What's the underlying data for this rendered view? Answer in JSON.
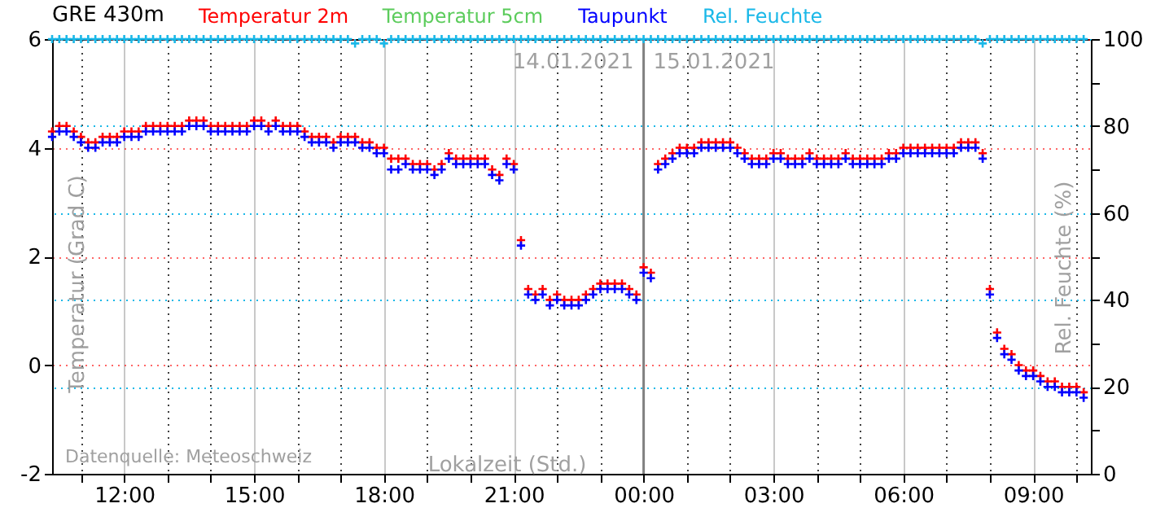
{
  "chart_data": {
    "type": "scatter",
    "title": "GRE 430m",
    "xlabel": "Lokalzeit (Std.)",
    "ylabel": "Temperatur (Grad C)",
    "y2label": "Rel. Feuchte (%)",
    "annotations": [
      "14.01.2021",
      "15.01.2021",
      "Datenquelle: Meteoschweiz"
    ],
    "x": [
      "2021-01-14T10:20",
      "2021-01-14T10:30",
      "2021-01-14T10:40",
      "2021-01-14T10:50",
      "2021-01-14T11:00",
      "2021-01-14T11:10",
      "2021-01-14T11:20",
      "2021-01-14T11:30",
      "2021-01-14T11:40",
      "2021-01-14T11:50",
      "2021-01-14T12:00",
      "2021-01-14T12:10",
      "2021-01-14T12:20",
      "2021-01-14T12:30",
      "2021-01-14T12:40",
      "2021-01-14T12:50",
      "2021-01-14T13:00",
      "2021-01-14T13:10",
      "2021-01-14T13:20",
      "2021-01-14T13:30",
      "2021-01-14T13:40",
      "2021-01-14T13:50",
      "2021-01-14T14:00",
      "2021-01-14T14:10",
      "2021-01-14T14:20",
      "2021-01-14T14:30",
      "2021-01-14T14:40",
      "2021-01-14T14:50",
      "2021-01-14T15:00",
      "2021-01-14T15:10",
      "2021-01-14T15:20",
      "2021-01-14T15:30",
      "2021-01-14T15:40",
      "2021-01-14T15:50",
      "2021-01-14T16:00",
      "2021-01-14T16:10",
      "2021-01-14T16:20",
      "2021-01-14T16:30",
      "2021-01-14T16:40",
      "2021-01-14T16:50",
      "2021-01-14T17:00",
      "2021-01-14T17:10",
      "2021-01-14T17:20",
      "2021-01-14T17:30",
      "2021-01-14T17:40",
      "2021-01-14T17:50",
      "2021-01-14T18:00",
      "2021-01-14T18:10",
      "2021-01-14T18:20",
      "2021-01-14T18:30",
      "2021-01-14T18:40",
      "2021-01-14T18:50",
      "2021-01-14T19:00",
      "2021-01-14T19:10",
      "2021-01-14T19:20",
      "2021-01-14T19:30",
      "2021-01-14T19:40",
      "2021-01-14T19:50",
      "2021-01-14T20:00",
      "2021-01-14T20:10",
      "2021-01-14T20:20",
      "2021-01-14T20:30",
      "2021-01-14T20:40",
      "2021-01-14T20:50",
      "2021-01-14T21:00",
      "2021-01-14T21:10",
      "2021-01-14T21:20",
      "2021-01-14T21:30",
      "2021-01-14T21:40",
      "2021-01-14T21:50",
      "2021-01-14T22:00",
      "2021-01-14T22:10",
      "2021-01-14T22:20",
      "2021-01-14T22:30",
      "2021-01-14T22:40",
      "2021-01-14T22:50",
      "2021-01-14T23:00",
      "2021-01-14T23:10",
      "2021-01-14T23:20",
      "2021-01-14T23:30",
      "2021-01-14T23:40",
      "2021-01-14T23:50",
      "2021-01-15T00:00",
      "2021-01-15T00:10",
      "2021-01-15T00:20",
      "2021-01-15T00:30",
      "2021-01-15T00:40",
      "2021-01-15T00:50",
      "2021-01-15T01:00",
      "2021-01-15T01:10",
      "2021-01-15T01:20",
      "2021-01-15T01:30",
      "2021-01-15T01:40",
      "2021-01-15T01:50",
      "2021-01-15T02:00",
      "2021-01-15T02:10",
      "2021-01-15T02:20",
      "2021-01-15T02:30",
      "2021-01-15T02:40",
      "2021-01-15T02:50",
      "2021-01-15T03:00",
      "2021-01-15T03:10",
      "2021-01-15T03:20",
      "2021-01-15T03:30",
      "2021-01-15T03:40",
      "2021-01-15T03:50",
      "2021-01-15T04:00",
      "2021-01-15T04:10",
      "2021-01-15T04:20",
      "2021-01-15T04:30",
      "2021-01-15T04:40",
      "2021-01-15T04:50",
      "2021-01-15T05:00",
      "2021-01-15T05:10",
      "2021-01-15T05:20",
      "2021-01-15T05:30",
      "2021-01-15T05:40",
      "2021-01-15T05:50",
      "2021-01-15T06:00",
      "2021-01-15T06:10",
      "2021-01-15T06:20",
      "2021-01-15T06:30",
      "2021-01-15T06:40",
      "2021-01-15T06:50",
      "2021-01-15T07:00",
      "2021-01-15T07:10",
      "2021-01-15T07:20",
      "2021-01-15T07:30",
      "2021-01-15T07:40",
      "2021-01-15T07:50",
      "2021-01-15T08:00",
      "2021-01-15T08:10",
      "2021-01-15T08:20",
      "2021-01-15T08:30",
      "2021-01-15T08:40",
      "2021-01-15T08:50",
      "2021-01-15T09:00",
      "2021-01-15T09:10",
      "2021-01-15T09:20",
      "2021-01-15T09:30",
      "2021-01-15T09:40",
      "2021-01-15T09:50",
      "2021-01-15T10:00",
      "2021-01-15T10:10"
    ],
    "series": [
      {
        "name": "Temperatur 2m",
        "color": "#ff0000",
        "values": [
          4.3,
          4.4,
          4.4,
          4.3,
          4.2,
          4.1,
          4.1,
          4.2,
          4.2,
          4.2,
          4.3,
          4.3,
          4.3,
          4.4,
          4.4,
          4.4,
          4.4,
          4.4,
          4.4,
          4.5,
          4.5,
          4.5,
          4.4,
          4.4,
          4.4,
          4.4,
          4.4,
          4.4,
          4.5,
          4.5,
          4.4,
          4.5,
          4.4,
          4.4,
          4.4,
          4.3,
          4.2,
          4.2,
          4.2,
          4.1,
          4.2,
          4.2,
          4.2,
          4.1,
          4.1,
          4.0,
          4.0,
          3.8,
          3.8,
          3.8,
          3.7,
          3.7,
          3.7,
          3.6,
          3.7,
          3.9,
          3.8,
          3.8,
          3.8,
          3.8,
          3.8,
          3.6,
          3.5,
          3.8,
          3.7,
          2.3,
          1.4,
          1.3,
          1.4,
          1.2,
          1.3,
          1.2,
          1.2,
          1.2,
          1.3,
          1.4,
          1.5,
          1.5,
          1.5,
          1.5,
          1.4,
          1.3,
          1.8,
          1.7,
          3.7,
          3.8,
          3.9,
          4.0,
          4.0,
          4.0,
          4.1,
          4.1,
          4.1,
          4.1,
          4.1,
          4.0,
          3.9,
          3.8,
          3.8,
          3.8,
          3.9,
          3.9,
          3.8,
          3.8,
          3.8,
          3.9,
          3.8,
          3.8,
          3.8,
          3.8,
          3.9,
          3.8,
          3.8,
          3.8,
          3.8,
          3.8,
          3.9,
          3.9,
          4.0,
          4.0,
          4.0,
          4.0,
          4.0,
          4.0,
          4.0,
          4.0,
          4.1,
          4.1,
          4.1,
          3.9,
          1.4,
          0.6,
          0.3,
          0.2,
          0.0,
          -0.1,
          -0.1,
          -0.2,
          -0.3,
          -0.3,
          -0.4,
          -0.4,
          -0.4,
          -0.5
        ]
      },
      {
        "name": "Temperatur 5cm",
        "color": "#5ccc5c",
        "values": [
          null,
          null,
          null,
          null,
          null,
          null,
          null,
          null,
          null,
          null,
          null,
          null,
          null,
          null,
          null,
          null,
          null,
          null,
          null,
          null,
          null,
          null,
          null,
          null,
          null,
          null,
          null,
          null,
          null,
          null,
          null,
          null,
          null,
          null,
          null,
          null,
          null,
          null,
          null,
          null,
          null,
          null,
          null,
          null,
          null,
          null,
          null,
          null,
          null,
          null,
          null,
          null,
          null,
          null,
          null,
          null,
          null,
          null,
          null,
          null,
          null,
          null,
          null,
          null,
          null,
          null,
          null,
          null,
          null,
          null,
          null,
          null,
          null,
          null,
          null,
          null,
          null,
          null,
          null,
          null,
          null,
          null,
          null,
          null,
          null,
          null,
          null,
          null,
          null,
          null,
          null,
          null,
          null,
          null,
          null,
          null,
          null,
          null,
          null,
          null,
          null,
          null,
          null,
          null,
          null,
          null,
          null,
          null,
          null,
          null,
          null,
          null,
          null,
          null,
          null,
          null,
          null,
          null,
          null,
          null,
          null,
          null,
          null,
          null,
          null,
          null,
          null,
          null,
          null,
          null,
          null,
          null,
          null,
          null,
          null,
          null,
          null,
          null,
          null,
          null,
          null,
          null,
          null,
          null
        ]
      },
      {
        "name": "Taupunkt",
        "color": "#0000ff",
        "values": [
          4.2,
          4.3,
          4.3,
          4.2,
          4.1,
          4.0,
          4.0,
          4.1,
          4.1,
          4.1,
          4.2,
          4.2,
          4.2,
          4.3,
          4.3,
          4.3,
          4.3,
          4.3,
          4.3,
          4.4,
          4.4,
          4.4,
          4.3,
          4.3,
          4.3,
          4.3,
          4.3,
          4.3,
          4.4,
          4.4,
          4.3,
          4.4,
          4.3,
          4.3,
          4.3,
          4.2,
          4.1,
          4.1,
          4.1,
          4.0,
          4.1,
          4.1,
          4.1,
          4.0,
          4.0,
          3.9,
          3.9,
          3.6,
          3.6,
          3.7,
          3.6,
          3.6,
          3.6,
          3.5,
          3.6,
          3.8,
          3.7,
          3.7,
          3.7,
          3.7,
          3.7,
          3.5,
          3.4,
          3.7,
          3.6,
          2.2,
          1.3,
          1.2,
          1.3,
          1.1,
          1.2,
          1.1,
          1.1,
          1.1,
          1.2,
          1.3,
          1.4,
          1.4,
          1.4,
          1.4,
          1.3,
          1.2,
          1.7,
          1.6,
          3.6,
          3.7,
          3.8,
          3.9,
          3.9,
          3.9,
          4.0,
          4.0,
          4.0,
          4.0,
          4.0,
          3.9,
          3.8,
          3.7,
          3.7,
          3.7,
          3.8,
          3.8,
          3.7,
          3.7,
          3.7,
          3.8,
          3.7,
          3.7,
          3.7,
          3.7,
          3.8,
          3.7,
          3.7,
          3.7,
          3.7,
          3.7,
          3.8,
          3.8,
          3.9,
          3.9,
          3.9,
          3.9,
          3.9,
          3.9,
          3.9,
          3.9,
          4.0,
          4.0,
          4.0,
          3.8,
          1.3,
          0.5,
          0.2,
          0.1,
          -0.1,
          -0.2,
          -0.2,
          -0.3,
          -0.4,
          -0.4,
          -0.5,
          -0.5,
          -0.5,
          -0.6
        ]
      },
      {
        "name": "Rel. Feuchte",
        "color": "#1ab8e8",
        "axis": "y2",
        "values": [
          100,
          100,
          100,
          100,
          100,
          100,
          100,
          100,
          100,
          100,
          100,
          100,
          100,
          100,
          100,
          100,
          100,
          100,
          100,
          100,
          100,
          100,
          100,
          100,
          100,
          100,
          100,
          100,
          100,
          100,
          100,
          100,
          100,
          100,
          100,
          100,
          100,
          100,
          100,
          100,
          100,
          100,
          99,
          100,
          100,
          100,
          99,
          100,
          100,
          100,
          100,
          100,
          100,
          100,
          100,
          100,
          100,
          100,
          100,
          100,
          100,
          100,
          100,
          100,
          100,
          100,
          100,
          100,
          100,
          100,
          100,
          100,
          100,
          100,
          100,
          100,
          100,
          100,
          100,
          100,
          100,
          100,
          100,
          100,
          100,
          100,
          100,
          100,
          100,
          100,
          100,
          100,
          100,
          100,
          100,
          100,
          100,
          100,
          100,
          100,
          100,
          100,
          100,
          100,
          100,
          100,
          100,
          100,
          100,
          100,
          100,
          100,
          100,
          100,
          100,
          100,
          100,
          100,
          100,
          100,
          100,
          100,
          100,
          100,
          100,
          100,
          100,
          100,
          100,
          99,
          100,
          100,
          100,
          100,
          100,
          100,
          100,
          100,
          100,
          100,
          100,
          100,
          100,
          100
        ]
      }
    ],
    "xlim": [
      "2021-01-14T10:20",
      "2021-01-15T10:20"
    ],
    "xticks": [
      {
        "value": "2021-01-14T11:00",
        "label": null
      },
      {
        "value": "2021-01-14T12:00",
        "label": "12:00"
      },
      {
        "value": "2021-01-14T13:00",
        "label": null
      },
      {
        "value": "2021-01-14T14:00",
        "label": null
      },
      {
        "value": "2021-01-14T15:00",
        "label": "15:00"
      },
      {
        "value": "2021-01-14T16:00",
        "label": null
      },
      {
        "value": "2021-01-14T17:00",
        "label": null
      },
      {
        "value": "2021-01-14T18:00",
        "label": "18:00"
      },
      {
        "value": "2021-01-14T19:00",
        "label": null
      },
      {
        "value": "2021-01-14T20:00",
        "label": null
      },
      {
        "value": "2021-01-14T21:00",
        "label": "21:00"
      },
      {
        "value": "2021-01-14T22:00",
        "label": null
      },
      {
        "value": "2021-01-14T23:00",
        "label": null
      },
      {
        "value": "2021-01-15T00:00",
        "label": "00:00"
      },
      {
        "value": "2021-01-15T01:00",
        "label": null
      },
      {
        "value": "2021-01-15T02:00",
        "label": null
      },
      {
        "value": "2021-01-15T03:00",
        "label": "03:00"
      },
      {
        "value": "2021-01-15T04:00",
        "label": null
      },
      {
        "value": "2021-01-15T05:00",
        "label": null
      },
      {
        "value": "2021-01-15T06:00",
        "label": "06:00"
      },
      {
        "value": "2021-01-15T07:00",
        "label": null
      },
      {
        "value": "2021-01-15T08:00",
        "label": null
      },
      {
        "value": "2021-01-15T09:00",
        "label": "09:00"
      },
      {
        "value": "2021-01-15T10:00",
        "label": null
      }
    ],
    "ylim": [
      -2,
      6
    ],
    "yticks": [
      -2,
      0,
      2,
      4,
      6
    ],
    "y2lim": [
      0,
      100
    ],
    "y2ticks": [
      0,
      {
        "value": 10,
        "label": null
      },
      20,
      {
        "value": 30,
        "label": null
      },
      40,
      {
        "value": 50,
        "label": null
      },
      60,
      {
        "value": 70,
        "label": null
      },
      80,
      {
        "value": 90,
        "label": null
      },
      100
    ],
    "ref_lines": [
      {
        "axis": "x",
        "value": "2021-01-15T00:00",
        "color": "#808080"
      }
    ],
    "grid": true,
    "legend": "top",
    "marker": "cross"
  }
}
